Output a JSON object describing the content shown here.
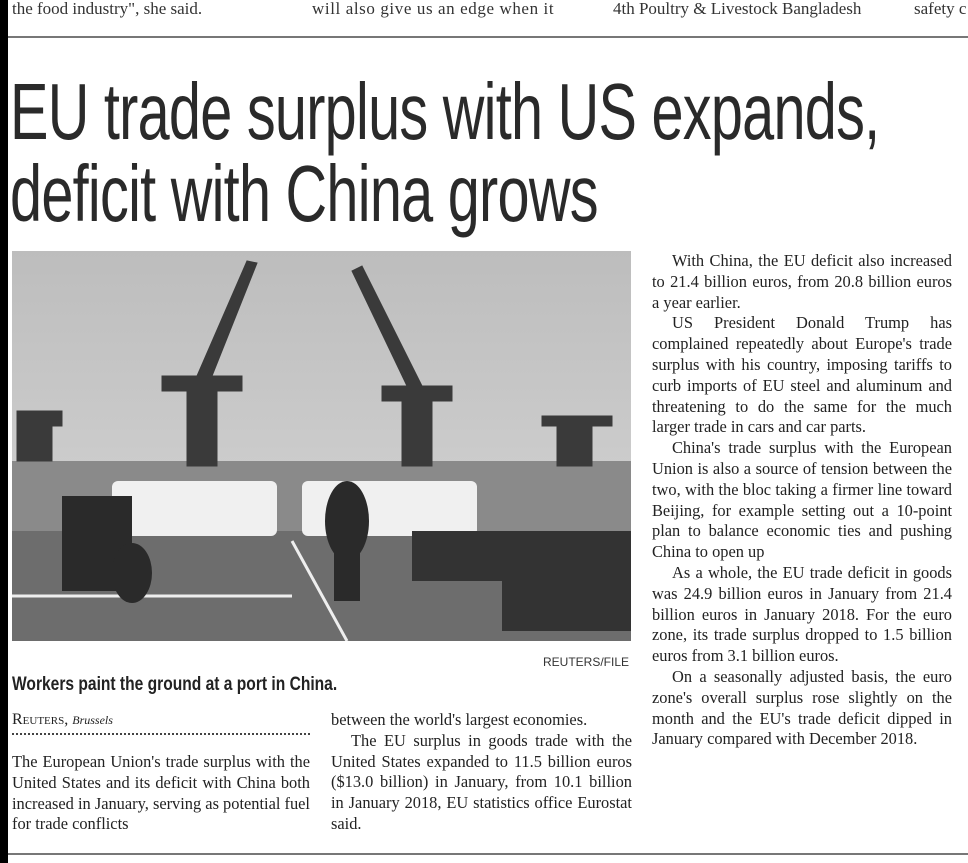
{
  "top_strip": [
    "the food industry\", she said.",
    "will also give us an edge when it",
    "4th Poultry & Livestock Bangladesh",
    "safety c"
  ],
  "headline": {
    "line1": "EU trade surplus with US expands,",
    "line2": "deficit with China grows"
  },
  "photo": {
    "credit": "REUTERS/FILE",
    "caption": "Workers paint the ground at a port in China."
  },
  "byline": {
    "source": "Reuters,",
    "location": "Brussels"
  },
  "column1": [
    "The European Union's trade surplus with the United States and its deficit with China both increased in January, serving as potential fuel for trade conflicts"
  ],
  "column2": [
    "between the world's largest economies.",
    "The EU surplus in goods trade with the United States expanded to 11.5 billion euros ($13.0 billion) in January, from 10.1 billion in January 2018, EU statistics office Eurostat said."
  ],
  "column3": [
    "With China, the EU deficit also increased to 21.4 billion euros, from 20.8 billion euros a year earlier.",
    "US President Donald Trump has complained repeatedly about Europe's trade surplus with his country, imposing tariffs to curb imports of EU steel and aluminum and threatening to do the same for the much larger trade in cars and car parts.",
    "China's trade surplus with the European Union is also a source of tension between the two, with the bloc taking a firmer line toward Beijing, for example setting out a 10-point plan to balance economic ties and pushing China to open up",
    "As a whole, the EU trade deficit in goods was 24.9 billion euros in January from 21.4 billion euros in January 2018. For the euro zone, its trade surplus dropped to 1.5 billion euros from 3.1 billion euros.",
    "On a seasonally adjusted basis, the euro zone's overall surplus rose slightly on the month and the EU's trade deficit dipped in January compared with December 2018."
  ]
}
